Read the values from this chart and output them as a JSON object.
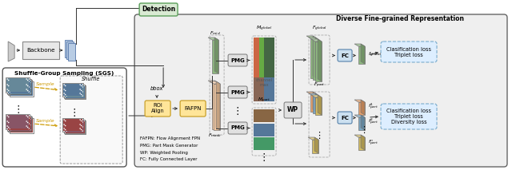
{
  "title_dfr": "Diverse Fine-grained Representation",
  "detection_label": "Detection",
  "backbone_label": "Backbone",
  "sgs_title": "Shuffle-Group Sampling (SGS)",
  "shuffle_label": "Shuffle",
  "sample_label": "Sample",
  "bbox_label": "bbox",
  "roi_align_label": "ROI\nAlign",
  "fafpn_label": "FAFPN",
  "pmg_label": "PMG",
  "wp_label": "WP",
  "fc_label": "FC",
  "loss1_text": "Clasification loss\nTriplet loss",
  "loss2_text": "Clasification loss\nTriplet loss\nDiversity loss",
  "legend1": "FAFPN: Flow Alignment FPN",
  "legend2": "PMG: Part Mask Generator",
  "legend3": "WP: Weighted Pooling",
  "legend4": "FC: Fully Connected Layer",
  "color_green_fc": "#d9ead3",
  "color_green_ec": "#5a9e5a",
  "color_yellow": "#ffe599",
  "color_yellow_ec": "#c9a02a",
  "color_gray_box": "#e0e0e0",
  "color_dfr_bg": "#efefef",
  "color_loss_bg": "#ddeeff",
  "color_loss_ec": "#7aabcc",
  "color_green_feat": "#8db87e",
  "color_blue_feat": "#7ba7c4",
  "color_orange_feat": "#e8a06a",
  "color_yellow_feat": "#d4bc60",
  "color_salmon_feat": "#c9836a",
  "color_fpn_blue": "#aec6e8",
  "color_fpn_peach": "#f5c9a0"
}
